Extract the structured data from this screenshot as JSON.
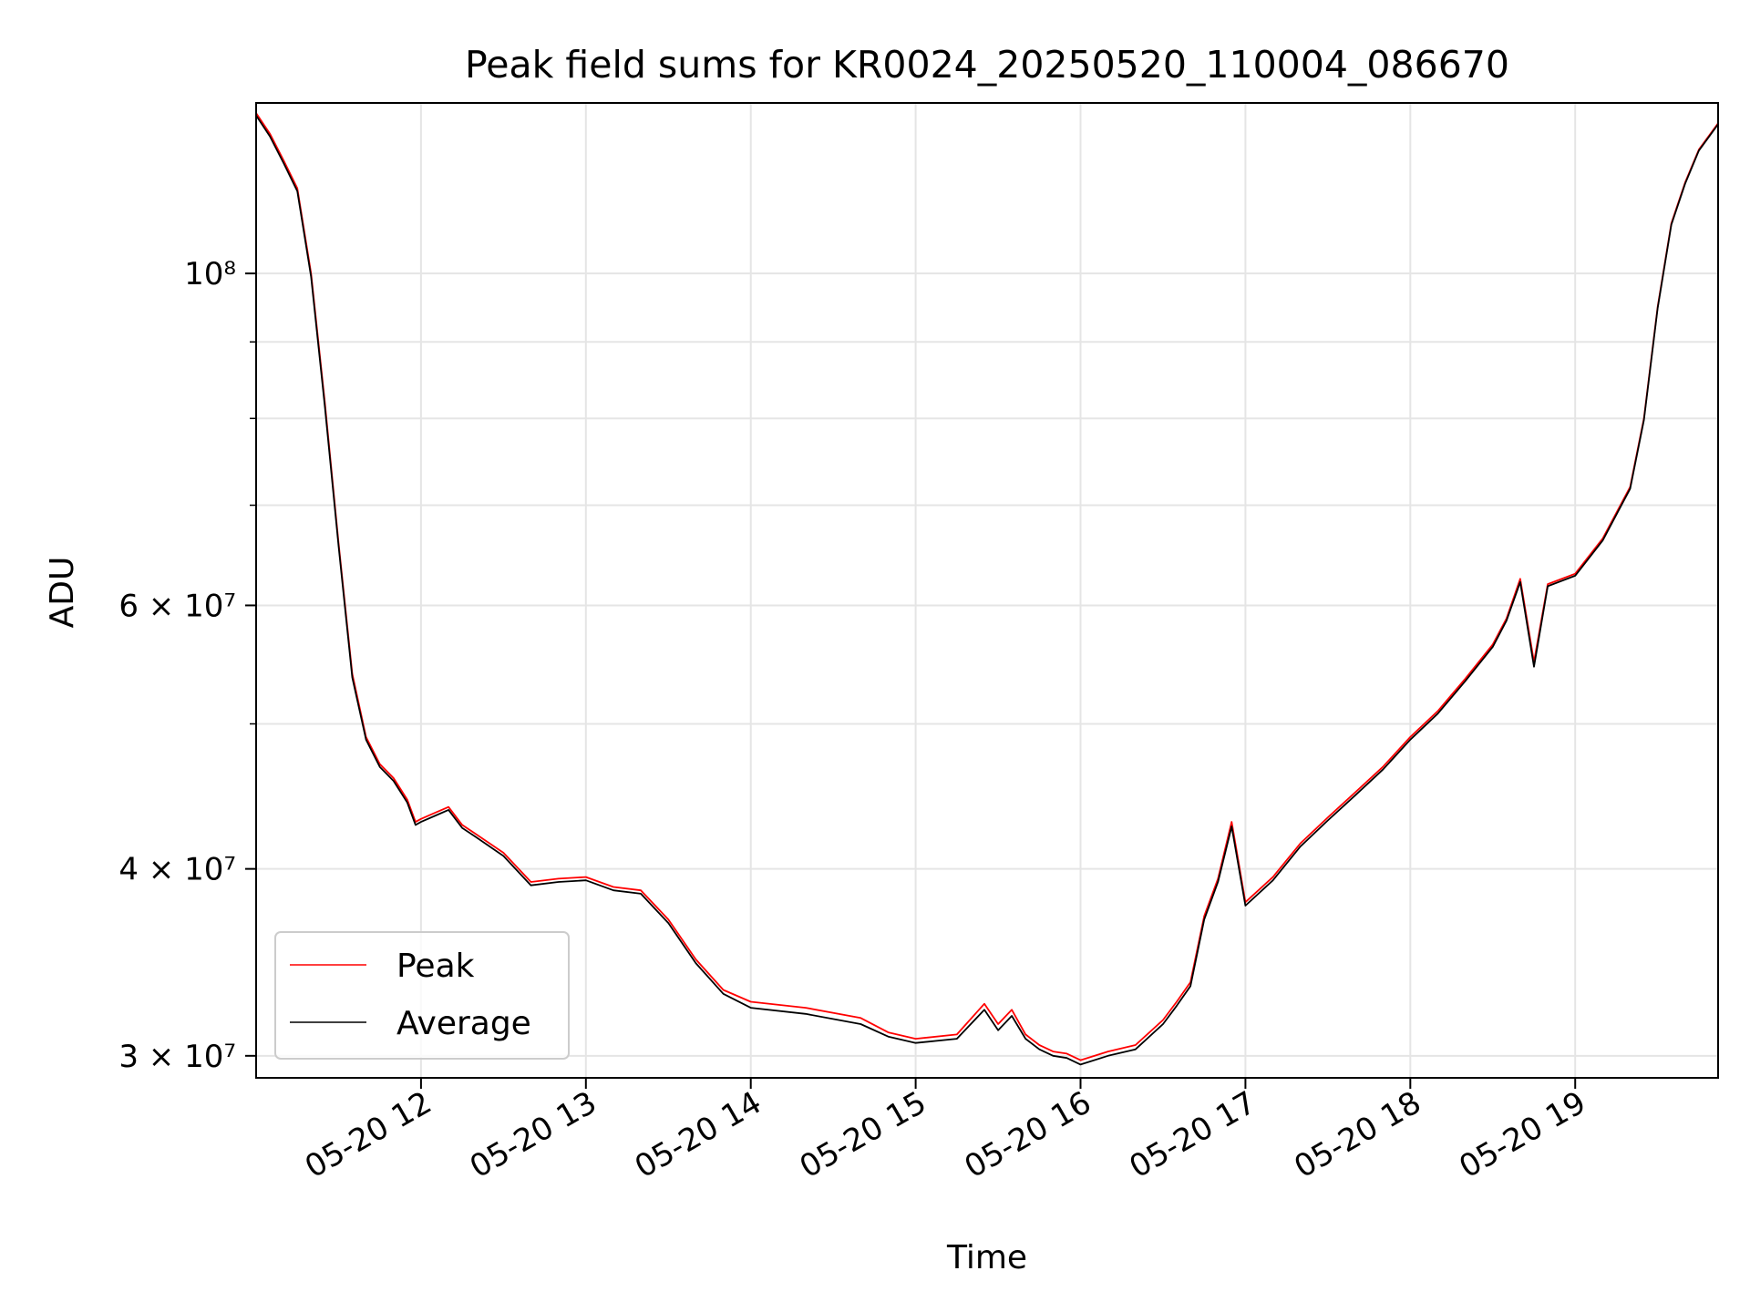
{
  "chart_data": {
    "type": "line",
    "title": "Peak field sums for KR0024_20250520_110004_086670",
    "xlabel": "Time",
    "ylabel": "ADU",
    "y_scale": "log",
    "xlim": [
      "2025-05-20 11:00",
      "2025-05-20 19:52"
    ],
    "ylim": [
      29000000,
      130000000
    ],
    "grid": true,
    "x_ticks": [
      {
        "value": "2025-05-20 12:00",
        "label": "05-20 12"
      },
      {
        "value": "2025-05-20 13:00",
        "label": "05-20 13"
      },
      {
        "value": "2025-05-20 14:00",
        "label": "05-20 14"
      },
      {
        "value": "2025-05-20 15:00",
        "label": "05-20 15"
      },
      {
        "value": "2025-05-20 16:00",
        "label": "05-20 16"
      },
      {
        "value": "2025-05-20 17:00",
        "label": "05-20 17"
      },
      {
        "value": "2025-05-20 18:00",
        "label": "05-20 18"
      },
      {
        "value": "2025-05-20 19:00",
        "label": "05-20 19"
      }
    ],
    "y_ticks": [
      {
        "value": 30000000,
        "label": "3 × 10⁷"
      },
      {
        "value": 40000000,
        "label": "4 × 10⁷"
      },
      {
        "value": 60000000,
        "label": "6 × 10⁷"
      },
      {
        "value": 100000000,
        "label": "10⁸"
      }
    ],
    "y_minor_ticks": [
      50000000,
      70000000,
      80000000,
      90000000
    ],
    "legend": {
      "placement": "lower-left"
    },
    "series": [
      {
        "name": "Peak",
        "color": "#ff0000"
      },
      {
        "name": "Average",
        "color": "#000000"
      }
    ],
    "x": [
      "2025-05-20 11:00",
      "2025-05-20 11:05",
      "2025-05-20 11:10",
      "2025-05-20 11:15",
      "2025-05-20 11:20",
      "2025-05-20 11:25",
      "2025-05-20 11:30",
      "2025-05-20 11:35",
      "2025-05-20 11:40",
      "2025-05-20 11:45",
      "2025-05-20 11:50",
      "2025-05-20 11:55",
      "2025-05-20 11:58",
      "2025-05-20 12:00",
      "2025-05-20 12:05",
      "2025-05-20 12:10",
      "2025-05-20 12:15",
      "2025-05-20 12:20",
      "2025-05-20 12:30",
      "2025-05-20 12:40",
      "2025-05-20 12:50",
      "2025-05-20 13:00",
      "2025-05-20 13:10",
      "2025-05-20 13:20",
      "2025-05-20 13:30",
      "2025-05-20 13:40",
      "2025-05-20 13:50",
      "2025-05-20 14:00",
      "2025-05-20 14:20",
      "2025-05-20 14:40",
      "2025-05-20 14:50",
      "2025-05-20 15:00",
      "2025-05-20 15:15",
      "2025-05-20 15:25",
      "2025-05-20 15:30",
      "2025-05-20 15:35",
      "2025-05-20 15:40",
      "2025-05-20 15:45",
      "2025-05-20 15:50",
      "2025-05-20 15:55",
      "2025-05-20 16:00",
      "2025-05-20 16:10",
      "2025-05-20 16:20",
      "2025-05-20 16:30",
      "2025-05-20 16:35",
      "2025-05-20 16:40",
      "2025-05-20 16:45",
      "2025-05-20 16:50",
      "2025-05-20 16:55",
      "2025-05-20 17:00",
      "2025-05-20 17:10",
      "2025-05-20 17:20",
      "2025-05-20 17:30",
      "2025-05-20 17:40",
      "2025-05-20 17:50",
      "2025-05-20 18:00",
      "2025-05-20 18:10",
      "2025-05-20 18:20",
      "2025-05-20 18:30",
      "2025-05-20 18:35",
      "2025-05-20 18:40",
      "2025-05-20 18:45",
      "2025-05-20 18:50",
      "2025-05-20 19:00",
      "2025-05-20 19:10",
      "2025-05-20 19:20",
      "2025-05-20 19:25",
      "2025-05-20 19:30",
      "2025-05-20 19:35",
      "2025-05-20 19:40",
      "2025-05-20 19:45",
      "2025-05-20 19:52"
    ],
    "peak": [
      128000000,
      124000000,
      119000000,
      114000000,
      100000000,
      82000000,
      66000000,
      54000000,
      49000000,
      47000000,
      46000000,
      44500000,
      43000000,
      43200000,
      43600000,
      44000000,
      42800000,
      42200000,
      41000000,
      39200000,
      39400000,
      39500000,
      38900000,
      38700000,
      37000000,
      34800000,
      33200000,
      32600000,
      32300000,
      31800000,
      31100000,
      30800000,
      31000000,
      32500000,
      31500000,
      32200000,
      31000000,
      30500000,
      30200000,
      30100000,
      29800000,
      30200000,
      30500000,
      31700000,
      32600000,
      33600000,
      37200000,
      39400000,
      43000000,
      38000000,
      39500000,
      41600000,
      43300000,
      45000000,
      46800000,
      49000000,
      51000000,
      53600000,
      56500000,
      58800000,
      62500000,
      55000000,
      62000000,
      63000000,
      66500000,
      72000000,
      80000000,
      95000000,
      108000000,
      115000000,
      121000000,
      126000000
    ],
    "average": [
      127500000,
      123500000,
      118500000,
      113500000,
      99500000,
      81500000,
      65700000,
      53700000,
      48800000,
      46800000,
      45800000,
      44300000,
      42800000,
      43000000,
      43400000,
      43800000,
      42600000,
      42000000,
      40800000,
      39000000,
      39200000,
      39300000,
      38700000,
      38500000,
      36800000,
      34600000,
      33000000,
      32300000,
      32000000,
      31500000,
      30900000,
      30600000,
      30800000,
      32200000,
      31200000,
      31900000,
      30800000,
      30300000,
      30000000,
      29900000,
      29600000,
      30000000,
      30300000,
      31500000,
      32400000,
      33400000,
      37000000,
      39200000,
      42700000,
      37800000,
      39300000,
      41400000,
      43100000,
      44800000,
      46600000,
      48800000,
      50800000,
      53400000,
      56300000,
      58600000,
      62200000,
      54600000,
      61800000,
      62800000,
      66300000,
      71800000,
      79800000,
      94800000,
      107800000,
      114800000,
      120800000,
      125800000
    ]
  }
}
